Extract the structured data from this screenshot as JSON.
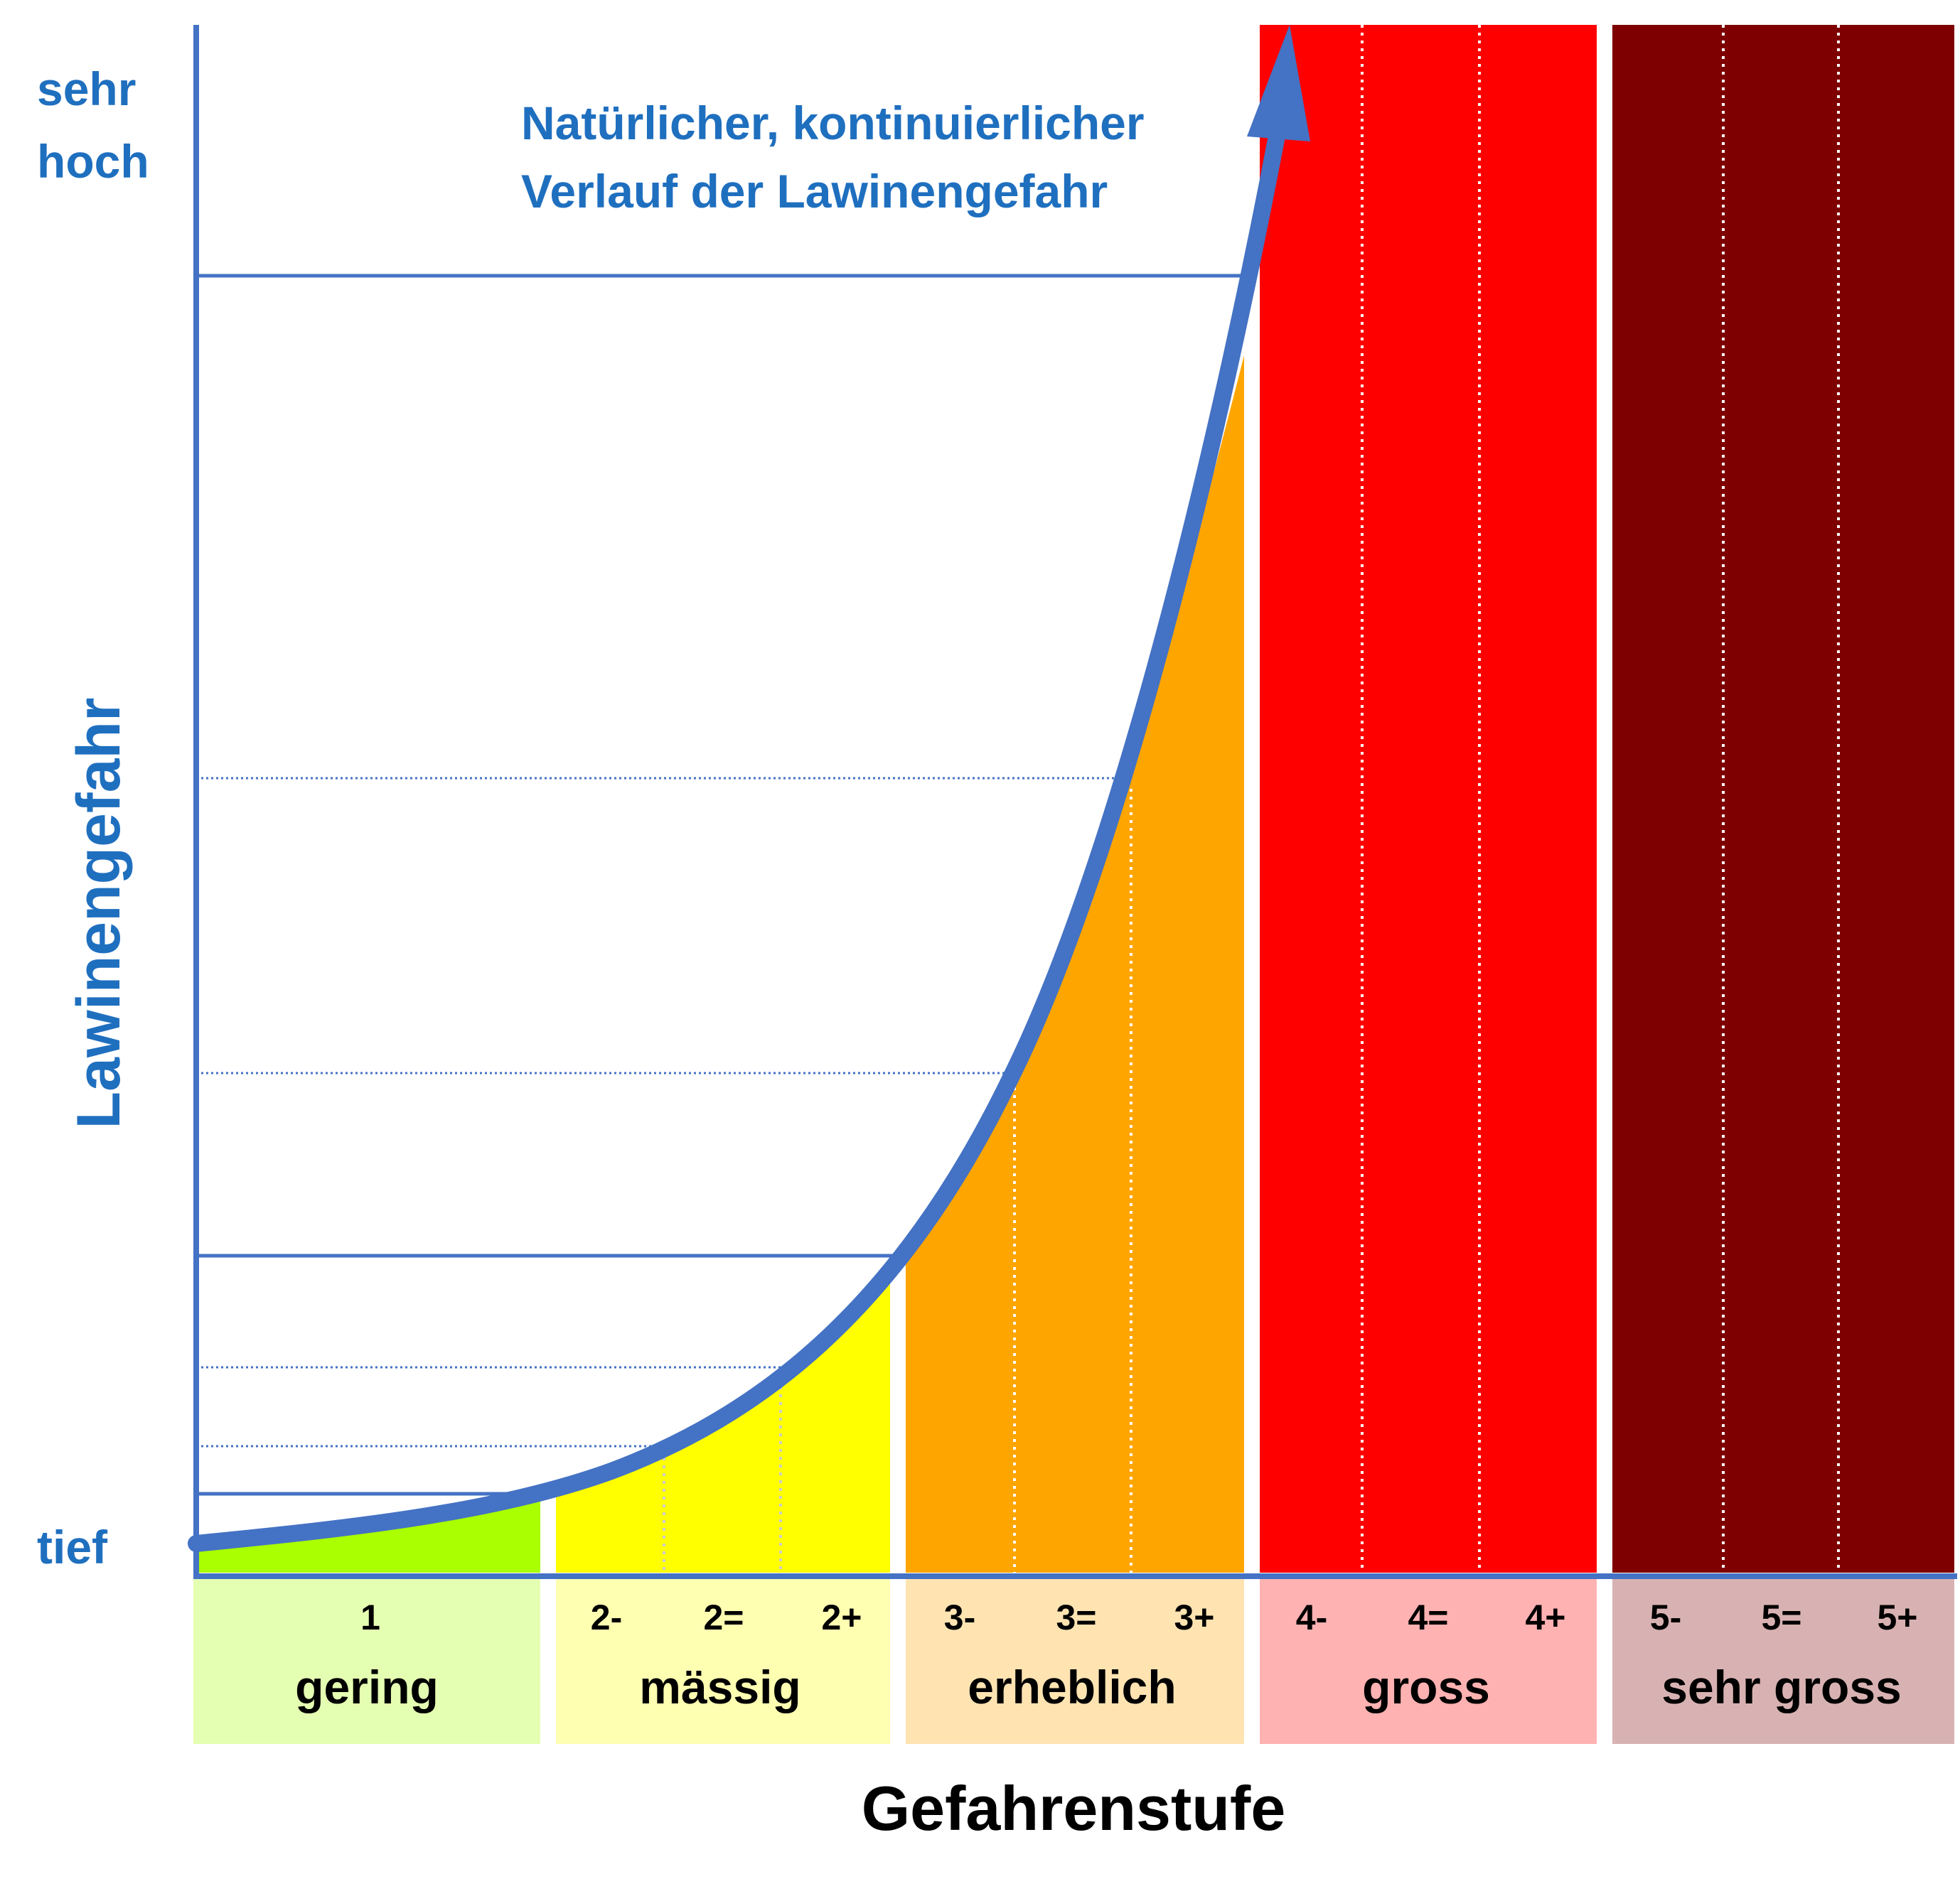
{
  "y_axis": {
    "title": "Lawinengefahr",
    "top_label_line1": "sehr",
    "top_label_line2": "hoch",
    "bottom_label": "tief"
  },
  "curve_annotation": {
    "line1": "Natürlicher, kontinuierlicher",
    "line2": "Verlauf der Lawinengefahr"
  },
  "x_axis_title": "Gefahrenstufe",
  "colors": {
    "axis": "#4472c4",
    "curve": "#4472c4",
    "blue_text": "#1f6fbf",
    "level1": "#aaff00",
    "level2": "#ffff00",
    "level3": "#ffa500",
    "level4": "#ff0000",
    "level5": "#7f0000",
    "band1": "#e5ffb2",
    "band2": "#ffffb2",
    "band3": "#ffe4b2",
    "band4": "#ffb2b2",
    "band5": "#d8b2b2"
  },
  "levels": [
    {
      "number": "1",
      "name": "gering",
      "sublevels": [
        "1"
      ]
    },
    {
      "number": "2",
      "name": "mässig",
      "sublevels": [
        "2-",
        "2=",
        "2+"
      ]
    },
    {
      "number": "3",
      "name": "erheblich",
      "sublevels": [
        "3-",
        "3=",
        "3+"
      ]
    },
    {
      "number": "4",
      "name": "gross",
      "sublevels": [
        "4-",
        "4=",
        "4+"
      ]
    },
    {
      "number": "5",
      "name": "sehr gross",
      "sublevels": [
        "5-",
        "5=",
        "5+"
      ]
    }
  ]
}
